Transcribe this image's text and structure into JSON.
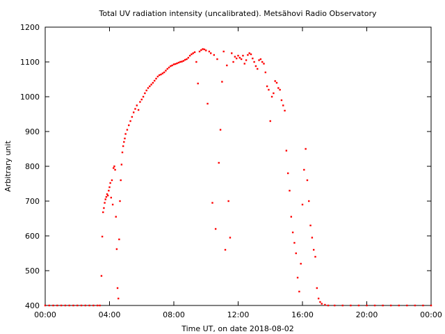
{
  "chart_data": {
    "type": "scatter",
    "title": "Total UV radiation intensity (uncalibrated). Metsähovi Radio Observatory",
    "xlabel": "Time UT, on date 2018-08-02",
    "ylabel": "Arbitrary unit",
    "xlim": [
      0,
      24
    ],
    "ylim": [
      400,
      1200
    ],
    "x_ticks": [
      {
        "value": 0,
        "label": "00:00"
      },
      {
        "value": 4,
        "label": "04:00"
      },
      {
        "value": 8,
        "label": "08:00"
      },
      {
        "value": 12,
        "label": "12:00"
      },
      {
        "value": 16,
        "label": "16:00"
      },
      {
        "value": 20,
        "label": "20:00"
      },
      {
        "value": 24,
        "label": "00:00"
      }
    ],
    "y_ticks": [
      400,
      500,
      600,
      700,
      800,
      900,
      1000,
      1100,
      1200
    ],
    "grid": false,
    "marker_color": "#ff0000",
    "series": [
      {
        "x_unit": "hours",
        "points": [
          [
            0.0,
            400
          ],
          [
            0.25,
            400
          ],
          [
            0.5,
            400
          ],
          [
            0.75,
            400
          ],
          [
            1.0,
            400
          ],
          [
            1.25,
            400
          ],
          [
            1.5,
            400
          ],
          [
            1.75,
            400
          ],
          [
            2.0,
            400
          ],
          [
            2.25,
            400
          ],
          [
            2.5,
            400
          ],
          [
            2.75,
            400
          ],
          [
            3.0,
            400
          ],
          [
            3.25,
            400
          ],
          [
            3.4,
            400
          ],
          [
            3.5,
            485
          ],
          [
            3.55,
            598
          ],
          [
            3.6,
            668
          ],
          [
            3.65,
            680
          ],
          [
            3.7,
            695
          ],
          [
            3.75,
            705
          ],
          [
            3.8,
            712
          ],
          [
            3.85,
            720
          ],
          [
            3.9,
            716
          ],
          [
            3.95,
            730
          ],
          [
            4.0,
            740
          ],
          [
            4.05,
            752
          ],
          [
            4.1,
            710
          ],
          [
            4.15,
            760
          ],
          [
            4.2,
            690
          ],
          [
            4.25,
            795
          ],
          [
            4.3,
            800
          ],
          [
            4.35,
            790
          ],
          [
            4.4,
            655
          ],
          [
            4.45,
            562
          ],
          [
            4.5,
            450
          ],
          [
            4.55,
            420
          ],
          [
            4.6,
            590
          ],
          [
            4.65,
            700
          ],
          [
            4.7,
            760
          ],
          [
            4.75,
            805
          ],
          [
            4.8,
            840
          ],
          [
            4.85,
            858
          ],
          [
            4.9,
            870
          ],
          [
            4.95,
            880
          ],
          [
            5.0,
            893
          ],
          [
            5.1,
            905
          ],
          [
            5.2,
            918
          ],
          [
            5.3,
            930
          ],
          [
            5.4,
            942
          ],
          [
            5.5,
            955
          ],
          [
            5.6,
            965
          ],
          [
            5.7,
            975
          ],
          [
            5.8,
            962
          ],
          [
            5.9,
            985
          ],
          [
            6.0,
            992
          ],
          [
            6.1,
            1000
          ],
          [
            6.2,
            1010
          ],
          [
            6.3,
            1018
          ],
          [
            6.4,
            1025
          ],
          [
            6.5,
            1030
          ],
          [
            6.6,
            1035
          ],
          [
            6.7,
            1040
          ],
          [
            6.8,
            1046
          ],
          [
            6.9,
            1052
          ],
          [
            7.0,
            1058
          ],
          [
            7.1,
            1062
          ],
          [
            7.2,
            1064
          ],
          [
            7.3,
            1067
          ],
          [
            7.4,
            1070
          ],
          [
            7.5,
            1075
          ],
          [
            7.6,
            1080
          ],
          [
            7.7,
            1084
          ],
          [
            7.8,
            1088
          ],
          [
            7.9,
            1090
          ],
          [
            8.0,
            1093
          ],
          [
            8.1,
            1094
          ],
          [
            8.2,
            1096
          ],
          [
            8.3,
            1098
          ],
          [
            8.4,
            1100
          ],
          [
            8.5,
            1101
          ],
          [
            8.6,
            1103
          ],
          [
            8.7,
            1106
          ],
          [
            8.8,
            1108
          ],
          [
            8.9,
            1112
          ],
          [
            9.0,
            1118
          ],
          [
            9.1,
            1122
          ],
          [
            9.2,
            1125
          ],
          [
            9.3,
            1128
          ],
          [
            9.4,
            1100
          ],
          [
            9.5,
            1038
          ],
          [
            9.6,
            1130
          ],
          [
            9.7,
            1134
          ],
          [
            9.8,
            1137
          ],
          [
            9.9,
            1136
          ],
          [
            10.0,
            1133
          ],
          [
            10.1,
            980
          ],
          [
            10.2,
            1130
          ],
          [
            10.3,
            1125
          ],
          [
            10.4,
            695
          ],
          [
            10.5,
            1120
          ],
          [
            10.6,
            620
          ],
          [
            10.7,
            1108
          ],
          [
            10.8,
            810
          ],
          [
            10.9,
            905
          ],
          [
            11.0,
            1043
          ],
          [
            11.1,
            1130
          ],
          [
            11.2,
            560
          ],
          [
            11.3,
            1090
          ],
          [
            11.4,
            700
          ],
          [
            11.5,
            595
          ],
          [
            11.6,
            1125
          ],
          [
            11.7,
            1100
          ],
          [
            11.8,
            1115
          ],
          [
            11.9,
            1110
          ],
          [
            12.0,
            1118
          ],
          [
            12.1,
            1112
          ],
          [
            12.2,
            1108
          ],
          [
            12.3,
            1118
          ],
          [
            12.4,
            1095
          ],
          [
            12.5,
            1105
          ],
          [
            12.6,
            1120
          ],
          [
            12.7,
            1125
          ],
          [
            12.8,
            1122
          ],
          [
            12.9,
            1110
          ],
          [
            13.0,
            1100
          ],
          [
            13.1,
            1088
          ],
          [
            13.2,
            1080
          ],
          [
            13.3,
            1105
          ],
          [
            13.4,
            1108
          ],
          [
            13.5,
            1100
          ],
          [
            13.6,
            1095
          ],
          [
            13.7,
            1070
          ],
          [
            13.8,
            1030
          ],
          [
            13.9,
            1020
          ],
          [
            14.0,
            930
          ],
          [
            14.1,
            1000
          ],
          [
            14.2,
            1010
          ],
          [
            14.3,
            1045
          ],
          [
            14.4,
            1040
          ],
          [
            14.5,
            1025
          ],
          [
            14.6,
            1020
          ],
          [
            14.7,
            990
          ],
          [
            14.8,
            975
          ],
          [
            14.9,
            960
          ],
          [
            15.0,
            845
          ],
          [
            15.1,
            780
          ],
          [
            15.2,
            730
          ],
          [
            15.3,
            655
          ],
          [
            15.4,
            610
          ],
          [
            15.5,
            580
          ],
          [
            15.6,
            550
          ],
          [
            15.7,
            480
          ],
          [
            15.8,
            440
          ],
          [
            15.9,
            520
          ],
          [
            16.0,
            690
          ],
          [
            16.1,
            790
          ],
          [
            16.2,
            850
          ],
          [
            16.3,
            760
          ],
          [
            16.4,
            700
          ],
          [
            16.5,
            630
          ],
          [
            16.6,
            595
          ],
          [
            16.7,
            560
          ],
          [
            16.8,
            540
          ],
          [
            16.9,
            450
          ],
          [
            17.0,
            420
          ],
          [
            17.1,
            410
          ],
          [
            17.2,
            405
          ],
          [
            17.4,
            402
          ],
          [
            17.6,
            400
          ],
          [
            18.0,
            400
          ],
          [
            18.5,
            400
          ],
          [
            19.0,
            400
          ],
          [
            19.5,
            400
          ],
          [
            20.0,
            400
          ],
          [
            20.5,
            400
          ],
          [
            21.0,
            400
          ],
          [
            21.5,
            400
          ],
          [
            22.0,
            400
          ],
          [
            22.5,
            400
          ],
          [
            23.0,
            400
          ],
          [
            23.5,
            400
          ],
          [
            24.0,
            400
          ]
        ]
      }
    ]
  }
}
